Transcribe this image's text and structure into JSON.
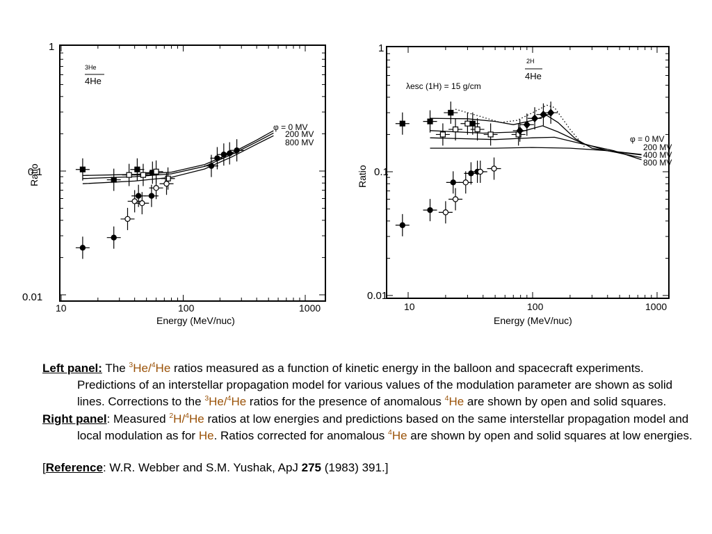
{
  "chart_data": [
    {
      "type": "scatter",
      "panel": "left",
      "ratio_label": [
        "3He",
        "4He"
      ],
      "xlabel": "Energy (MeV/nuc)",
      "ylabel": "Ratio",
      "xscale": "log",
      "yscale": "log",
      "xlim": [
        10,
        1000
      ],
      "ylim": [
        0.01,
        1
      ],
      "x_ticks": [
        "10",
        "100",
        "1000"
      ],
      "y_ticks": [
        "0.01",
        "0.1",
        "1"
      ],
      "legend_text": [
        "φ = 0 MV",
        "200 MV",
        "800 MV"
      ],
      "series": [
        {
          "marker": "solid-square",
          "points": [
            [
              15,
              0.103
            ],
            [
              27,
              0.085
            ],
            [
              42,
              0.103
            ],
            [
              56,
              0.097
            ]
          ]
        },
        {
          "marker": "open-square",
          "points": [
            [
              36,
              0.093
            ],
            [
              47,
              0.093
            ],
            [
              60,
              0.099
            ],
            [
              75,
              0.087
            ]
          ]
        },
        {
          "marker": "solid-circle",
          "points": [
            [
              15,
              0.024
            ],
            [
              27,
              0.029
            ],
            [
              43,
              0.063
            ],
            [
              55,
              0.063
            ],
            [
              170,
              0.11
            ],
            [
              190,
              0.127
            ],
            [
              215,
              0.136
            ],
            [
              240,
              0.139
            ],
            [
              275,
              0.147
            ]
          ]
        },
        {
          "marker": "open-circle",
          "points": [
            [
              35,
              0.041
            ],
            [
              40,
              0.057
            ],
            [
              46,
              0.055
            ],
            [
              60,
              0.073
            ],
            [
              73,
              0.079
            ]
          ]
        }
      ],
      "model_curves": [
        {
          "label": "0 MV",
          "points": [
            [
              15,
              0.092
            ],
            [
              40,
              0.094
            ],
            [
              80,
              0.098
            ],
            [
              150,
              0.113
            ],
            [
              250,
              0.14
            ],
            [
              400,
              0.178
            ],
            [
              550,
              0.212
            ]
          ]
        },
        {
          "label": "200 MV",
          "points": [
            [
              15,
              0.087
            ],
            [
              40,
              0.09
            ],
            [
              80,
              0.095
            ],
            [
              150,
              0.109
            ],
            [
              250,
              0.136
            ],
            [
              400,
              0.172
            ],
            [
              550,
              0.203
            ]
          ]
        },
        {
          "label": "800 MV",
          "points": [
            [
              15,
              0.079
            ],
            [
              40,
              0.083
            ],
            [
              80,
              0.089
            ],
            [
              150,
              0.104
            ],
            [
              250,
              0.13
            ],
            [
              400,
              0.165
            ],
            [
              550,
              0.193
            ]
          ]
        }
      ]
    },
    {
      "type": "scatter",
      "panel": "right",
      "ratio_label": [
        "2H",
        "4He"
      ],
      "xlabel": "Energy (MeV/nuc)",
      "ylabel": "Ratio",
      "xscale": "log",
      "yscale": "log",
      "xlim": [
        6,
        1000
      ],
      "ylim": [
        0.01,
        1
      ],
      "x_ticks": [
        "10",
        "100",
        "1000"
      ],
      "y_ticks": [
        "0.01",
        "0.1",
        "1"
      ],
      "annotation": "λesc (1H) = 15 g/cm",
      "legend_text": [
        "φ = 0 MV",
        "200 MV",
        "400 MV",
        "800 MV"
      ],
      "series": [
        {
          "marker": "solid-square",
          "points": [
            [
              9,
              0.245
            ],
            [
              15,
              0.255
            ],
            [
              22,
              0.3
            ],
            [
              33,
              0.245
            ]
          ]
        },
        {
          "marker": "open-square",
          "points": [
            [
              19,
              0.2
            ],
            [
              24,
              0.22
            ],
            [
              30,
              0.245
            ],
            [
              36,
              0.22
            ],
            [
              46,
              0.2
            ],
            [
              77,
              0.2
            ]
          ]
        },
        {
          "marker": "solid-diamond",
          "points": [
            [
              79,
              0.215
            ],
            [
              90,
              0.24
            ],
            [
              104,
              0.27
            ],
            [
              122,
              0.29
            ],
            [
              140,
              0.3
            ]
          ]
        },
        {
          "marker": "solid-circle",
          "points": [
            [
              9,
              0.037
            ],
            [
              15,
              0.049
            ],
            [
              23,
              0.082
            ],
            [
              32,
              0.097
            ],
            [
              36,
              0.1
            ]
          ]
        },
        {
          "marker": "open-circle",
          "points": [
            [
              20,
              0.047
            ],
            [
              24,
              0.06
            ],
            [
              29,
              0.082
            ],
            [
              38,
              0.1
            ],
            [
              49,
              0.106
            ]
          ]
        }
      ],
      "model_curves": [
        {
          "label": "dotted",
          "points": [
            [
              24,
              0.32
            ],
            [
              38,
              0.28
            ],
            [
              55,
              0.25
            ],
            [
              75,
              0.26
            ],
            [
              100,
              0.3
            ],
            [
              130,
              0.345
            ],
            [
              150,
              0.33
            ],
            [
              200,
              0.22
            ],
            [
              260,
              0.16
            ]
          ]
        },
        {
          "label": "0 MV",
          "points": [
            [
              15,
              0.27
            ],
            [
              30,
              0.268
            ],
            [
              50,
              0.255
            ],
            [
              70,
              0.24
            ],
            [
              100,
              0.26
            ],
            [
              130,
              0.285
            ],
            [
              160,
              0.25
            ],
            [
              220,
              0.185
            ],
            [
              300,
              0.155
            ],
            [
              450,
              0.145
            ],
            [
              750,
              0.137
            ]
          ]
        },
        {
          "label": "200 MV",
          "points": [
            [
              15,
              0.215
            ],
            [
              40,
              0.205
            ],
            [
              80,
              0.21
            ],
            [
              120,
              0.235
            ],
            [
              160,
              0.21
            ],
            [
              250,
              0.17
            ],
            [
              400,
              0.148
            ],
            [
              750,
              0.13
            ]
          ]
        },
        {
          "label": "400 MV",
          "points": [
            [
              15,
              0.188
            ],
            [
              50,
              0.182
            ],
            [
              100,
              0.188
            ],
            [
              150,
              0.19
            ],
            [
              250,
              0.168
            ],
            [
              450,
              0.148
            ],
            [
              750,
              0.125
            ]
          ]
        },
        {
          "label": "800 MV",
          "points": [
            [
              15,
              0.155
            ],
            [
              50,
              0.155
            ],
            [
              100,
              0.157
            ],
            [
              200,
              0.155
            ],
            [
              400,
              0.148
            ],
            [
              750,
              0.138
            ]
          ]
        }
      ]
    }
  ],
  "caption": {
    "left_label": "Left panel:",
    "left_text_1": " The ",
    "left_iso_a_sup": "3",
    "left_iso_a": "He/",
    "left_iso_b_sup": "4",
    "left_iso_b": "He",
    "left_text_2": " ratios measured as a function of kinetic energy in the balloon and spacecraft experiments. Predictions of an interstellar propagation model for various values of the modulation parameter  are shown as solid lines. Corrections to the ",
    "left_iso_c_sup": "3",
    "left_iso_c": "He/",
    "left_iso_d_sup": "4",
    "left_iso_d": "He",
    "left_text_3": " ratios for the presence of anomalous ",
    "left_iso_e_sup": "4",
    "left_iso_e": "He",
    "left_text_4": " are shown by open and solid squares.",
    "right_label": "Right panel",
    "right_text_1": ": Measured ",
    "right_iso_a_sup": "2",
    "right_iso_a": "H/",
    "right_iso_b_sup": "4",
    "right_iso_b": "He",
    "right_text_2": " ratios at low energies and predictions based on the same interstellar propagation model and local modulation as for ",
    "right_he": "He",
    "right_text_3": ". Ratios corrected for anomalous ",
    "right_iso_c_sup": "4",
    "right_iso_c": "He",
    "right_text_4": " are shown by open and solid squares at low energies.",
    "ref_open": "[",
    "ref_label": "Reference",
    "ref_text": ": W.R. Webber and S.M. Yushak, ApJ ",
    "ref_volume": "275",
    "ref_tail": " (1983) 391.]"
  }
}
